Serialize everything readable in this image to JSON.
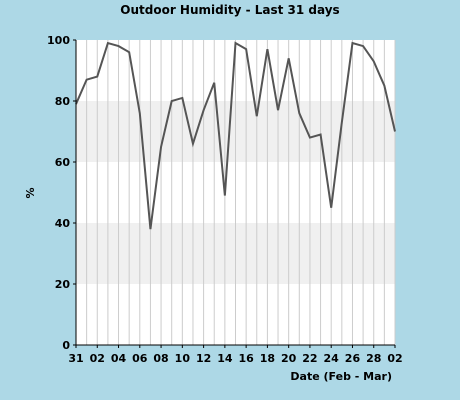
{
  "chart_data": {
    "type": "line",
    "title": "Outdoor Humidity - Last 31 days",
    "xlabel": "Date (Feb - Mar)",
    "ylabel": "%",
    "ylim": [
      0,
      100
    ],
    "y_ticks": [
      0,
      20,
      40,
      60,
      80,
      100
    ],
    "x_tick_labels": [
      "31",
      "02",
      "04",
      "06",
      "08",
      "10",
      "12",
      "14",
      "16",
      "18",
      "20",
      "22",
      "24",
      "26",
      "28",
      "02"
    ],
    "x": [
      "Jan 31",
      "Feb 01",
      "Feb 02",
      "Feb 03",
      "Feb 04",
      "Feb 05",
      "Feb 06",
      "Feb 07",
      "Feb 08",
      "Feb 09",
      "Feb 10",
      "Feb 11",
      "Feb 12",
      "Feb 13",
      "Feb 14",
      "Feb 15",
      "Feb 16",
      "Feb 17",
      "Feb 18",
      "Feb 19",
      "Feb 20",
      "Feb 21",
      "Feb 22",
      "Feb 23",
      "Feb 24",
      "Feb 25",
      "Feb 26",
      "Feb 27",
      "Feb 28",
      "Mar 01",
      "Mar 02"
    ],
    "series": [
      {
        "values": [
          79,
          87,
          88,
          99,
          98,
          96,
          76,
          38,
          65,
          80,
          81,
          66,
          77,
          86,
          49,
          99,
          97,
          75,
          97,
          77,
          94,
          76,
          68,
          69,
          45,
          73,
          99,
          98,
          93,
          85,
          70
        ]
      }
    ],
    "grid": true,
    "colors": {
      "background": "#ADD8E6",
      "plot_background": "#FFFFFF",
      "band": "#F0F0F0",
      "line": "#555555"
    }
  }
}
